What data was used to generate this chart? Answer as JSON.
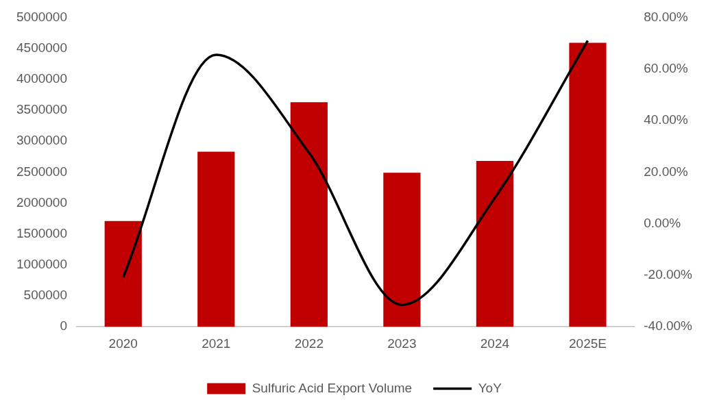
{
  "chart_data": {
    "type": "bar",
    "categories": [
      "2020",
      "2021",
      "2022",
      "2023",
      "2024",
      "2025E"
    ],
    "series": [
      {
        "name": "Sulfuric Acid Export Volume",
        "color": "#c00000",
        "values": [
          1710000,
          2830000,
          3630000,
          2490000,
          2680000,
          4590000
        ]
      },
      {
        "name": "YoY",
        "type": "line",
        "axis": "y2",
        "color": "#000000",
        "values": [
          -20.8,
          65.5,
          27.5,
          -31.5,
          10,
          71
        ]
      }
    ],
    "ylim": [
      0,
      5000000
    ],
    "yticks": [
      0,
      500000,
      1000000,
      1500000,
      2000000,
      2500000,
      3000000,
      3500000,
      4000000,
      4500000,
      5000000
    ],
    "y2lim": [
      -40,
      80
    ],
    "y2ticks": [
      {
        "value": -40,
        "label": "-40.00%"
      },
      {
        "value": -20,
        "label": "-20.00%"
      },
      {
        "value": 0,
        "label": "0.00%"
      },
      {
        "value": 20,
        "label": "20.00%"
      },
      {
        "value": 40,
        "label": "40.00%"
      },
      {
        "value": 60,
        "label": "60.00%"
      },
      {
        "value": 80,
        "label": "80.00%"
      }
    ],
    "grid": false,
    "legend": "bottom",
    "marker": "none",
    "line_style": "solid"
  }
}
